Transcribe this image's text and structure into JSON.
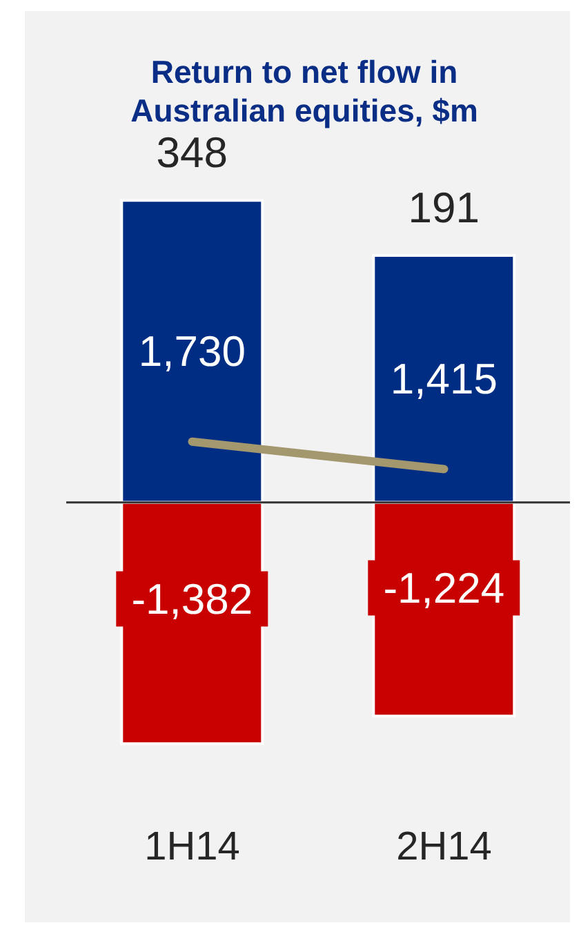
{
  "chart_data": {
    "type": "bar",
    "title": "Return to net flow in Australian equities, $m",
    "categories": [
      "1H14",
      "2H14"
    ],
    "stacked": true,
    "marker": "none",
    "legend": false,
    "grid": false,
    "series": [
      {
        "color": "#002d84",
        "values": [
          1730,
          1415
        ],
        "value_labels": [
          "1,730",
          "1,415"
        ]
      },
      {
        "color": "#c80000",
        "values": [
          -1382,
          -1224
        ],
        "value_labels": [
          "-1,382",
          "-1,224"
        ]
      },
      {
        "type": "line",
        "color": "#a3976e",
        "values": [
          348,
          191
        ]
      }
    ],
    "totals": [
      "348",
      "191"
    ]
  }
}
